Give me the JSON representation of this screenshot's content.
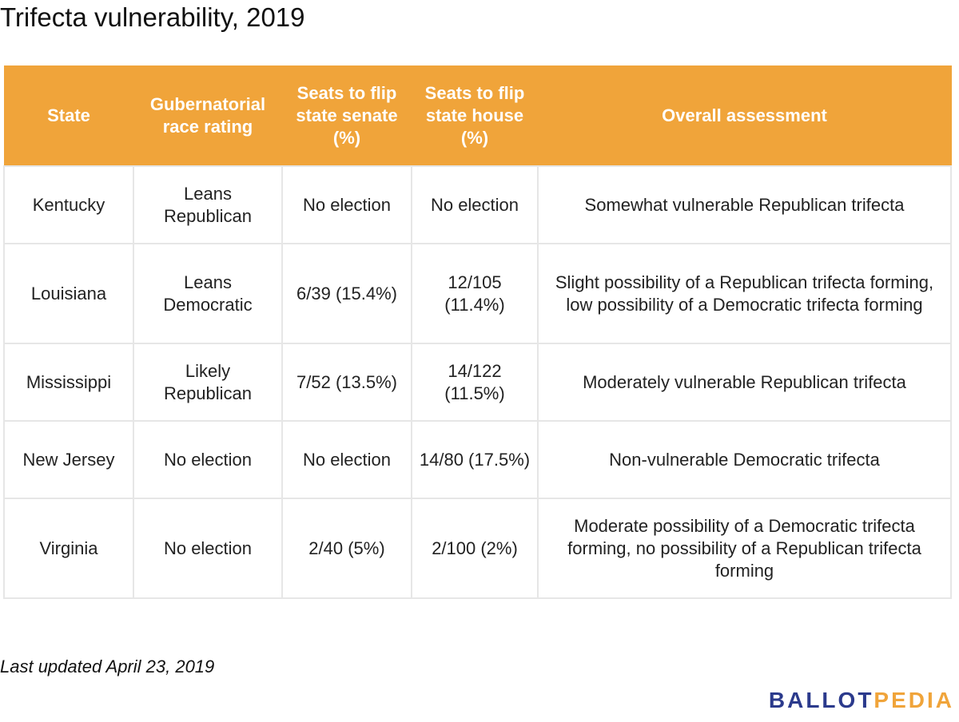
{
  "title": "Trifecta vulnerability, 2019",
  "table": {
    "headers": [
      "State",
      "Gubernatorial race rating",
      "Seats to flip state senate (%)",
      "Seats to flip state house (%)",
      "Overall assessment"
    ],
    "rows": [
      [
        "Kentucky",
        "Leans Republican",
        "No election",
        "No election",
        "Somewhat vulnerable Republican trifecta"
      ],
      [
        "Louisiana",
        "Leans Democratic",
        "6/39 (15.4%)",
        "12/105 (11.4%)",
        "Slight possibility of a Republican trifecta forming, low possibility of a Democratic trifecta forming"
      ],
      [
        "Mississippi",
        "Likely Republican",
        "7/52 (13.5%)",
        "14/122 (11.5%)",
        "Moderately vulnerable Republican trifecta"
      ],
      [
        "New Jersey",
        "No election",
        "No election",
        "14/80 (17.5%)",
        "Non-vulnerable Democratic trifecta"
      ],
      [
        "Virginia",
        "No election",
        "2/40 (5%)",
        "2/100 (2%)",
        "Moderate possibility of a Democratic trifecta forming, no possibility of a Republican trifecta forming"
      ]
    ]
  },
  "footnote": "Last updated April 23, 2019",
  "logo": {
    "part1": "BALLOT",
    "part2": "PEDIA",
    "colors": {
      "part1": "#2b3a8c",
      "part2": "#f0a43a"
    }
  },
  "colors": {
    "header_background": "#f0a43a",
    "header_text": "#ffffff",
    "cell_border": "#e6e6e6"
  }
}
